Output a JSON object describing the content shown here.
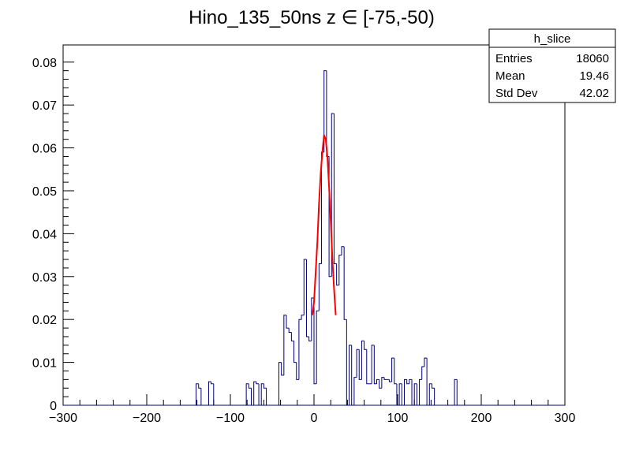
{
  "chart_data": {
    "type": "bar",
    "title": "Hino_135_50ns z  ∈ [-75,-50)",
    "xlabel": "",
    "ylabel": "",
    "xlim": [
      -300,
      300
    ],
    "ylim": [
      0,
      0.084
    ],
    "x_ticks": [
      -300,
      -200,
      -100,
      0,
      100,
      200,
      300
    ],
    "x_tick_labels": [
      "−300",
      "−200",
      "−100",
      "0",
      "100",
      "200",
      "300"
    ],
    "y_ticks": [
      0,
      0.01,
      0.02,
      0.03,
      0.04,
      0.05,
      0.06,
      0.07,
      0.08
    ],
    "y_tick_labels": [
      "0",
      "0.01",
      "0.02",
      "0.03",
      "0.04",
      "0.05",
      "0.06",
      "0.07",
      "0.08"
    ],
    "grid": false,
    "histogram_color": "#00007f",
    "fit_color": "#ff0000",
    "stats_box": {
      "title": "h_slice",
      "rows": [
        {
          "label": "Entries",
          "value": "18060"
        },
        {
          "label": "Mean",
          "value": "19.46"
        },
        {
          "label": "Std Dev",
          "value": "42.02"
        }
      ]
    },
    "bin_width": 3,
    "bins": [
      {
        "x": -141,
        "y": 0.005
      },
      {
        "x": -138,
        "y": 0.004
      },
      {
        "x": -126,
        "y": 0.0055
      },
      {
        "x": -123,
        "y": 0.005
      },
      {
        "x": -81,
        "y": 0.005
      },
      {
        "x": -78,
        "y": 0.004
      },
      {
        "x": -72,
        "y": 0.0055
      },
      {
        "x": -69,
        "y": 0.005
      },
      {
        "x": -63,
        "y": 0.005
      },
      {
        "x": -60,
        "y": 0.004
      },
      {
        "x": -42,
        "y": 0.01
      },
      {
        "x": -39,
        "y": 0.007
      },
      {
        "x": -36,
        "y": 0.021
      },
      {
        "x": -33,
        "y": 0.018
      },
      {
        "x": -30,
        "y": 0.017
      },
      {
        "x": -27,
        "y": 0.015
      },
      {
        "x": -24,
        "y": 0.01
      },
      {
        "x": -21,
        "y": 0.006
      },
      {
        "x": -18,
        "y": 0.02
      },
      {
        "x": -15,
        "y": 0.021
      },
      {
        "x": -12,
        "y": 0.034
      },
      {
        "x": -9,
        "y": 0.016
      },
      {
        "x": -6,
        "y": 0.015
      },
      {
        "x": -3,
        "y": 0.025
      },
      {
        "x": 0,
        "y": 0.005
      },
      {
        "x": 3,
        "y": 0.022
      },
      {
        "x": 6,
        "y": 0.033
      },
      {
        "x": 9,
        "y": 0.059
      },
      {
        "x": 12,
        "y": 0.078
      },
      {
        "x": 15,
        "y": 0.058
      },
      {
        "x": 18,
        "y": 0.03
      },
      {
        "x": 21,
        "y": 0.068
      },
      {
        "x": 24,
        "y": 0.033
      },
      {
        "x": 27,
        "y": 0.028
      },
      {
        "x": 30,
        "y": 0.035
      },
      {
        "x": 33,
        "y": 0.037
      },
      {
        "x": 36,
        "y": 0.02
      },
      {
        "x": 39,
        "y": 0.0
      },
      {
        "x": 42,
        "y": 0.014
      },
      {
        "x": 45,
        "y": 0.0
      },
      {
        "x": 48,
        "y": 0.0065
      },
      {
        "x": 51,
        "y": 0.013
      },
      {
        "x": 54,
        "y": 0.006
      },
      {
        "x": 57,
        "y": 0.015
      },
      {
        "x": 60,
        "y": 0.013
      },
      {
        "x": 63,
        "y": 0.005
      },
      {
        "x": 66,
        "y": 0.005
      },
      {
        "x": 69,
        "y": 0.014
      },
      {
        "x": 72,
        "y": 0.005
      },
      {
        "x": 75,
        "y": 0.006
      },
      {
        "x": 78,
        "y": 0.004
      },
      {
        "x": 81,
        "y": 0.0065
      },
      {
        "x": 84,
        "y": 0.006
      },
      {
        "x": 87,
        "y": 0.006
      },
      {
        "x": 90,
        "y": 0.0055
      },
      {
        "x": 93,
        "y": 0.011
      },
      {
        "x": 96,
        "y": 0.005
      },
      {
        "x": 99,
        "y": 0.0
      },
      {
        "x": 102,
        "y": 0.005
      },
      {
        "x": 105,
        "y": 0.0
      },
      {
        "x": 108,
        "y": 0.006
      },
      {
        "x": 111,
        "y": 0.005
      },
      {
        "x": 114,
        "y": 0.006
      },
      {
        "x": 117,
        "y": 0.0
      },
      {
        "x": 120,
        "y": 0.005
      },
      {
        "x": 123,
        "y": 0.0
      },
      {
        "x": 126,
        "y": 0.006
      },
      {
        "x": 129,
        "y": 0.009
      },
      {
        "x": 132,
        "y": 0.011
      },
      {
        "x": 135,
        "y": 0.0
      },
      {
        "x": 138,
        "y": 0.005
      },
      {
        "x": 141,
        "y": 0.004
      },
      {
        "x": 168,
        "y": 0.006
      },
      {
        "x": 171,
        "y": 0.0
      }
    ],
    "fit_curve": {
      "x": [
        -2,
        0,
        2,
        4,
        6,
        8,
        10,
        12,
        14,
        16,
        18,
        20,
        22,
        24,
        26
      ],
      "y": [
        0.021,
        0.024,
        0.031,
        0.038,
        0.047,
        0.054,
        0.059,
        0.063,
        0.062,
        0.058,
        0.051,
        0.043,
        0.034,
        0.027,
        0.021
      ]
    }
  }
}
